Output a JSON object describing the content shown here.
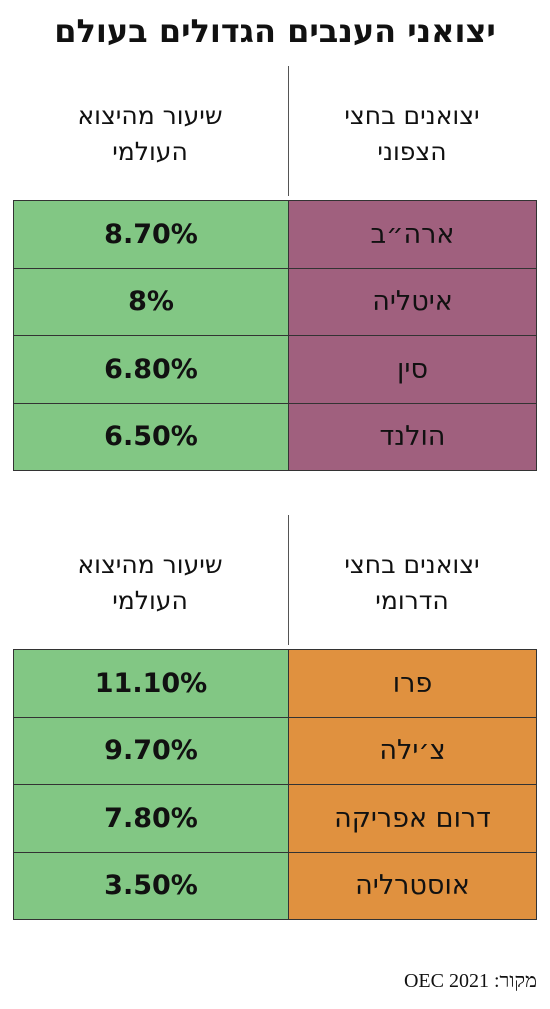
{
  "title": "יצואני הענבים הגדולים בעולם",
  "tables": [
    {
      "headers": [
        [
          "יצואנים בחצי",
          "הצפוני"
        ],
        [
          "שיעור מהיצוא",
          "העולמי"
        ]
      ],
      "rows": [
        [
          "ארה״ב",
          "8.70%"
        ],
        [
          "איטליה",
          "8%"
        ],
        [
          "סין",
          "6.80%"
        ],
        [
          "הולנד",
          "6.50%"
        ]
      ]
    },
    {
      "headers": [
        [
          "יצואנים בחצי",
          "הדרומי"
        ],
        [
          "שיעור מהיצוא",
          "העולמי"
        ]
      ],
      "rows": [
        [
          "פרו",
          "11.10%"
        ],
        [
          "צ׳ילה",
          "9.70%"
        ],
        [
          "דרום אפריקה",
          "7.80%"
        ],
        [
          "אוסטרליה",
          "3.50%"
        ]
      ]
    }
  ],
  "source": "מקור: OEC 2021"
}
